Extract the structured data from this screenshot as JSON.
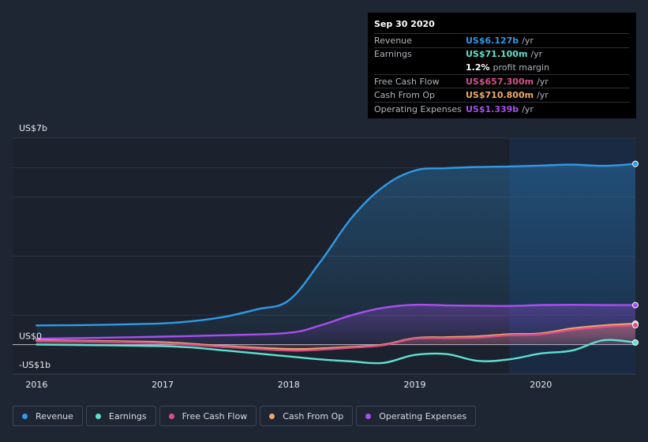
{
  "tooltip": {
    "date": "Sep 30 2020",
    "rows": [
      {
        "label": "Revenue",
        "value": "US$6.127b",
        "unit": "/yr",
        "color": "#2f9ae8"
      },
      {
        "label": "Earnings",
        "value": "US$71.100m",
        "unit": "/yr",
        "color": "#5fe0cf"
      },
      {
        "label": "",
        "value": "1.2%",
        "unit": "profit margin",
        "color": "#ffffff"
      },
      {
        "label": "Free Cash Flow",
        "value": "US$657.300m",
        "unit": "/yr",
        "color": "#d7508a"
      },
      {
        "label": "Cash From Op",
        "value": "US$710.800m",
        "unit": "/yr",
        "color": "#f0a868"
      },
      {
        "label": "Operating Expenses",
        "value": "US$1.339b",
        "unit": "/yr",
        "color": "#a650ee"
      }
    ]
  },
  "legend": [
    {
      "label": "Revenue",
      "color": "#2f9ae8"
    },
    {
      "label": "Earnings",
      "color": "#5fe0cf"
    },
    {
      "label": "Free Cash Flow",
      "color": "#d7508a"
    },
    {
      "label": "Cash From Op",
      "color": "#f0a868"
    },
    {
      "label": "Operating Expenses",
      "color": "#a650ee"
    }
  ],
  "chart_data": {
    "type": "line",
    "ylim": [
      -1,
      7
    ],
    "y_tick_labels": [
      {
        "value": 7,
        "label": "US$7b"
      },
      {
        "value": 0,
        "label": "US$0"
      },
      {
        "value": -1,
        "label": "-US$1b"
      }
    ],
    "x_ticks": [
      {
        "value": 2016.0,
        "label": "2016"
      },
      {
        "value": 2017.0,
        "label": "2017"
      },
      {
        "value": 2018.0,
        "label": "2018"
      },
      {
        "value": 2019.0,
        "label": "2019"
      },
      {
        "value": 2020.0,
        "label": "2020"
      }
    ],
    "xlim": [
      2015.81,
      2020.75
    ],
    "highlight_from": 2019.75,
    "series": [
      {
        "name": "Revenue",
        "color": "#2f9ae8",
        "area": true,
        "x": [
          2016.0,
          2016.5,
          2017.0,
          2017.25,
          2017.5,
          2017.75,
          2018.0,
          2018.25,
          2018.5,
          2018.75,
          2019.0,
          2019.25,
          2019.5,
          2019.75,
          2020.0,
          2020.25,
          2020.5,
          2020.75
        ],
        "y": [
          0.65,
          0.67,
          0.72,
          0.8,
          0.95,
          1.2,
          1.5,
          2.8,
          4.3,
          5.35,
          5.9,
          5.98,
          6.02,
          6.04,
          6.07,
          6.1,
          6.06,
          6.127
        ]
      },
      {
        "name": "Operating Expenses",
        "color": "#a650ee",
        "area": true,
        "x": [
          2016.0,
          2016.5,
          2017.0,
          2017.5,
          2018.0,
          2018.25,
          2018.5,
          2018.75,
          2019.0,
          2019.25,
          2019.5,
          2019.75,
          2020.0,
          2020.25,
          2020.5,
          2020.75
        ],
        "y": [
          0.2,
          0.23,
          0.27,
          0.32,
          0.4,
          0.65,
          1.0,
          1.25,
          1.35,
          1.33,
          1.32,
          1.31,
          1.34,
          1.35,
          1.34,
          1.339
        ]
      },
      {
        "name": "Cash From Op",
        "color": "#f0a868",
        "area": true,
        "x": [
          2016.0,
          2016.5,
          2017.0,
          2017.5,
          2018.0,
          2018.25,
          2018.5,
          2018.75,
          2019.0,
          2019.25,
          2019.5,
          2019.75,
          2020.0,
          2020.25,
          2020.5,
          2020.75
        ],
        "y": [
          0.15,
          0.12,
          0.08,
          -0.05,
          -0.15,
          -0.13,
          -0.08,
          0.0,
          0.22,
          0.25,
          0.28,
          0.35,
          0.38,
          0.55,
          0.65,
          0.7108
        ]
      },
      {
        "name": "Free Cash Flow",
        "color": "#d7508a",
        "area": true,
        "x": [
          2016.0,
          2016.5,
          2017.0,
          2017.5,
          2018.0,
          2018.25,
          2018.5,
          2018.75,
          2019.0,
          2019.25,
          2019.5,
          2019.75,
          2020.0,
          2020.25,
          2020.5,
          2020.75
        ],
        "y": [
          0.12,
          0.1,
          0.05,
          -0.08,
          -0.2,
          -0.17,
          -0.1,
          -0.02,
          0.2,
          0.22,
          0.24,
          0.32,
          0.35,
          0.5,
          0.6,
          0.6573
        ]
      },
      {
        "name": "Earnings",
        "color": "#5fe0cf",
        "area": false,
        "x": [
          2016.0,
          2016.5,
          2017.0,
          2017.25,
          2017.5,
          2017.75,
          2018.0,
          2018.25,
          2018.5,
          2018.75,
          2019.0,
          2019.25,
          2019.5,
          2019.75,
          2020.0,
          2020.25,
          2020.5,
          2020.75
        ],
        "y": [
          0.0,
          -0.02,
          -0.05,
          -0.1,
          -0.2,
          -0.3,
          -0.4,
          -0.5,
          -0.57,
          -0.62,
          -0.35,
          -0.32,
          -0.55,
          -0.5,
          -0.3,
          -0.2,
          0.15,
          0.0711
        ]
      }
    ]
  }
}
